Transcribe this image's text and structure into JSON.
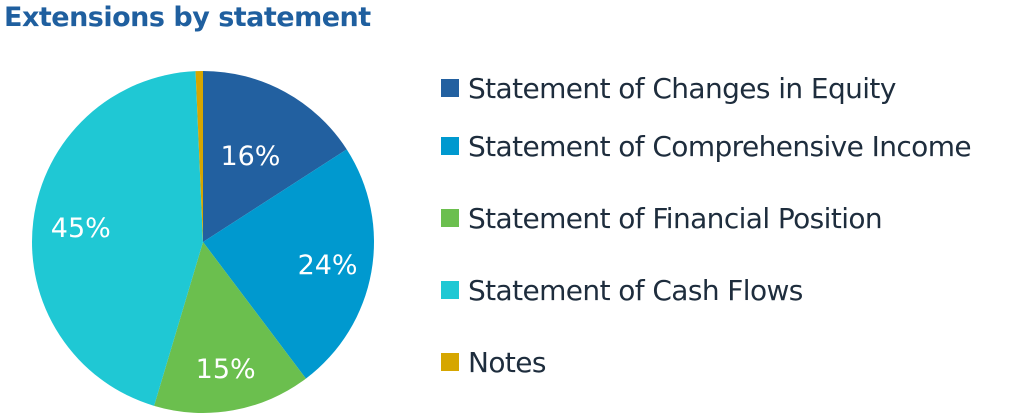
{
  "title": "Extensions by statement",
  "chart_data": {
    "type": "pie",
    "title": "Extensions by statement",
    "start_angle": "12 o'clock, clockwise",
    "legend_position": "right",
    "categories": [
      "Statement of Changes in Equity",
      "Statement of Comprehensive Income",
      "Statement of Financial Position",
      "Statement of Cash Flows",
      "Notes"
    ],
    "values": [
      16,
      24,
      15,
      45,
      0.7
    ],
    "labels": [
      "16%",
      "24%",
      "15%",
      "45%",
      ""
    ],
    "colors": [
      "#2260a0",
      "#0099cf",
      "#6bbf4e",
      "#1fc8d4",
      "#d6a600"
    ]
  },
  "legend": {
    "items": [
      {
        "label": "Statement of Changes in Equity",
        "color": "#2260a0"
      },
      {
        "label": "Statement of Comprehensive Income",
        "color": "#0099cf"
      },
      {
        "label": "Statement of Financial Position",
        "color": "#6bbf4e"
      },
      {
        "label": "Statement of Cash Flows",
        "color": "#1fc8d4"
      },
      {
        "label": "Notes",
        "color": "#d6a600"
      }
    ]
  }
}
